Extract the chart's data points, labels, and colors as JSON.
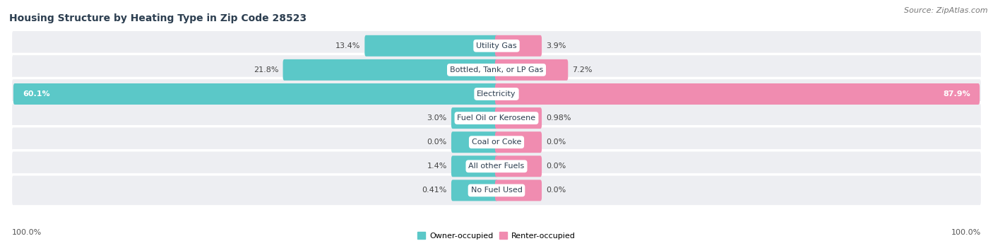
{
  "title": "Housing Structure by Heating Type in Zip Code 28523",
  "source": "Source: ZipAtlas.com",
  "categories": [
    "Utility Gas",
    "Bottled, Tank, or LP Gas",
    "Electricity",
    "Fuel Oil or Kerosene",
    "Coal or Coke",
    "All other Fuels",
    "No Fuel Used"
  ],
  "owner_values": [
    13.4,
    21.8,
    60.1,
    3.0,
    0.0,
    1.4,
    0.41
  ],
  "renter_values": [
    3.9,
    7.2,
    87.9,
    0.98,
    0.0,
    0.0,
    0.0
  ],
  "owner_labels": [
    "13.4%",
    "21.8%",
    "60.1%",
    "3.0%",
    "0.0%",
    "1.4%",
    "0.41%"
  ],
  "renter_labels": [
    "3.9%",
    "7.2%",
    "87.9%",
    "0.98%",
    "0.0%",
    "0.0%",
    "0.0%"
  ],
  "owner_color": "#5BC8C8",
  "renter_color": "#F08CB0",
  "row_bg_light": "#EDEEF2",
  "row_bg_dark": "#E5E6EA",
  "title_fontsize": 10,
  "source_fontsize": 8,
  "label_fontsize": 8,
  "axis_label_left": "100.0%",
  "axis_label_right": "100.0%",
  "max_value": 100.0,
  "min_bar_width": 4.5,
  "legend_owner": "Owner-occupied",
  "legend_renter": "Renter-occupied"
}
